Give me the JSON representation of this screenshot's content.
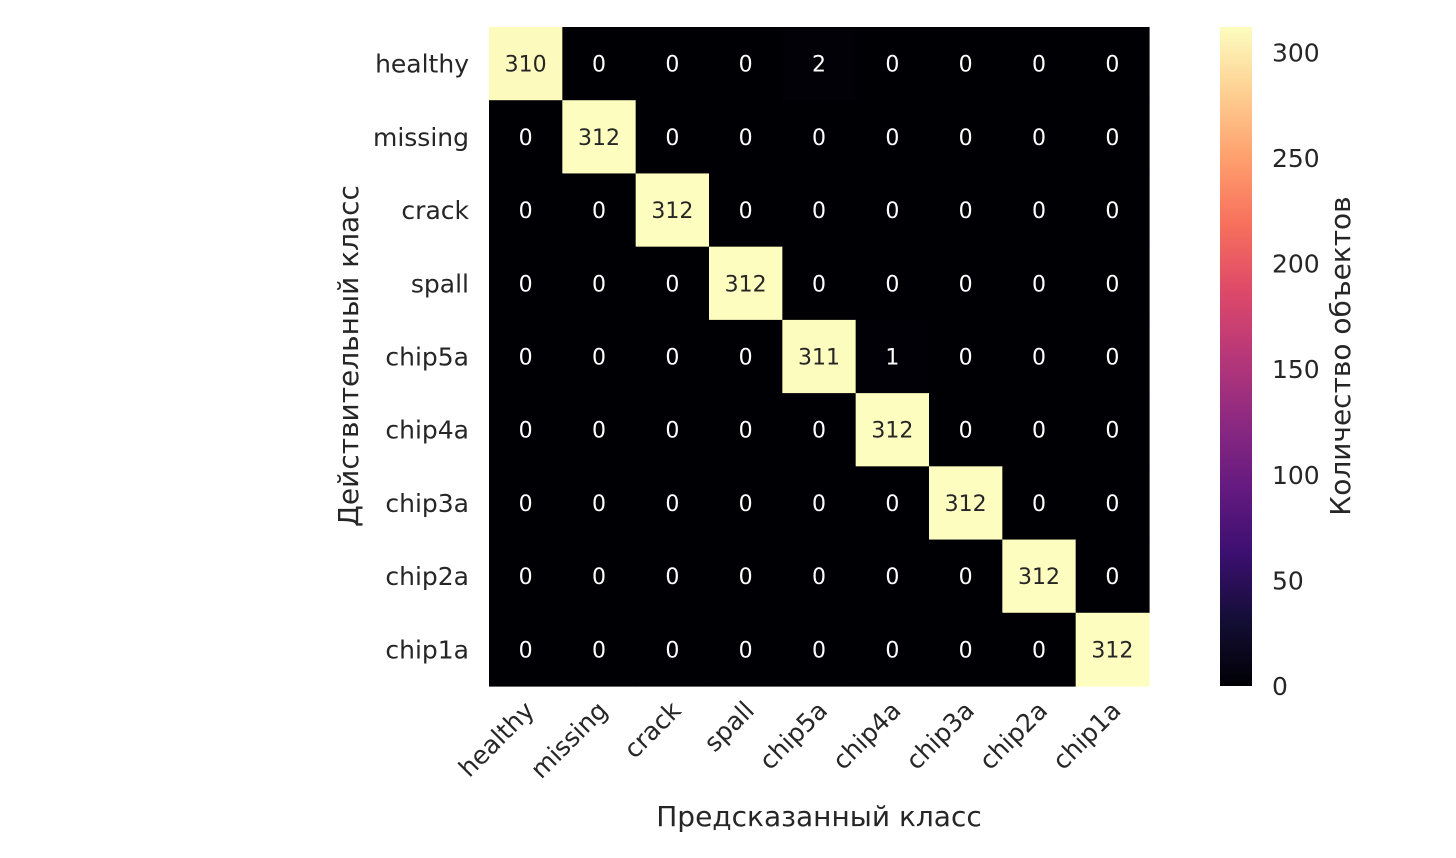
{
  "chart_data": {
    "type": "heatmap",
    "title": "",
    "xlabel": "Предсказанный класс",
    "ylabel": "Действительный класс",
    "x_categories": [
      "healthy",
      "missing",
      "crack",
      "spall",
      "chip5a",
      "chip4a",
      "chip3a",
      "chip2a",
      "chip1a"
    ],
    "y_categories": [
      "healthy",
      "missing",
      "crack",
      "spall",
      "chip5a",
      "chip4a",
      "chip3a",
      "chip2a",
      "chip1a"
    ],
    "values": [
      [
        310,
        0,
        0,
        0,
        2,
        0,
        0,
        0,
        0
      ],
      [
        0,
        312,
        0,
        0,
        0,
        0,
        0,
        0,
        0
      ],
      [
        0,
        0,
        312,
        0,
        0,
        0,
        0,
        0,
        0
      ],
      [
        0,
        0,
        0,
        312,
        0,
        0,
        0,
        0,
        0
      ],
      [
        0,
        0,
        0,
        0,
        311,
        1,
        0,
        0,
        0
      ],
      [
        0,
        0,
        0,
        0,
        0,
        312,
        0,
        0,
        0
      ],
      [
        0,
        0,
        0,
        0,
        0,
        0,
        312,
        0,
        0
      ],
      [
        0,
        0,
        0,
        0,
        0,
        0,
        0,
        312,
        0
      ],
      [
        0,
        0,
        0,
        0,
        0,
        0,
        0,
        0,
        312
      ]
    ],
    "colormap": "magma",
    "colorbar": {
      "label": "Количество объектов",
      "range": [
        0,
        312
      ],
      "ticks": [
        0,
        50,
        100,
        150,
        200,
        250,
        300
      ]
    },
    "annotations": true,
    "grid": false,
    "legend": "right"
  }
}
